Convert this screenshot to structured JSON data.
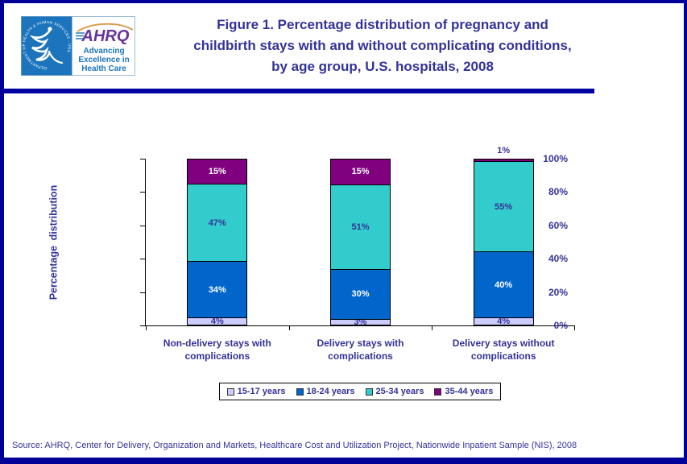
{
  "header": {
    "logo": {
      "seal_circle_text": "DEPARTMENT OF HEALTH & HUMAN SERVICES - USA",
      "brand": "AHRQ",
      "tagline_lines": [
        "Advancing",
        "Excellence in",
        "Health Care"
      ],
      "colors": {
        "hhs_blue": "#1C75BC",
        "brand_purple": "#663399",
        "arc_orange": "#D9A050",
        "tagline_blue": "#1B75BC"
      }
    },
    "title_lines": [
      "Figure 1. Percentage distribution of pregnancy and",
      "childbirth stays with and without complicating conditions,",
      "by age group, U.S. hospitals, 2008"
    ],
    "title_color": "#333399"
  },
  "chart_data": {
    "type": "bar",
    "stacked": true,
    "title": "Figure 1. Percentage distribution of pregnancy and childbirth stays with and without complicating conditions, by age group, U.S. hospitals, 2008",
    "xlabel": "",
    "ylabel": "Percentage distribution",
    "ylim": [
      0,
      100
    ],
    "grid": false,
    "legend_position": "bottom",
    "y_ticks": [
      "0%",
      "20%",
      "40%",
      "60%",
      "80%",
      "100%"
    ],
    "y_tick_values": [
      0,
      20,
      40,
      60,
      80,
      100
    ],
    "categories": [
      "Non-delivery stays with complications",
      "Delivery stays with complications",
      "Delivery stays without complications"
    ],
    "series": [
      {
        "name": "15-17 years",
        "color": "#CCCCFF",
        "label_color": "#333399",
        "values": [
          4,
          3,
          4
        ],
        "labels": [
          "4%",
          "3%",
          "4%"
        ],
        "label_outside": [
          false,
          false,
          false
        ]
      },
      {
        "name": "18-24 years",
        "color": "#0066CC",
        "label_color": "#FFFFFF",
        "values": [
          34,
          30,
          40
        ],
        "labels": [
          "34%",
          "30%",
          "40%"
        ],
        "label_outside": [
          false,
          false,
          false
        ]
      },
      {
        "name": "25-34 years",
        "color": "#33CCCC",
        "label_color": "#333399",
        "values": [
          47,
          51,
          55
        ],
        "labels": [
          "47%",
          "51%",
          "55%"
        ],
        "label_outside": [
          false,
          false,
          false
        ]
      },
      {
        "name": "35-44 years",
        "color": "#800080",
        "label_color": "#FFFFFF",
        "values": [
          15,
          15,
          1
        ],
        "labels": [
          "15%",
          "15%",
          "1%"
        ],
        "label_outside": [
          false,
          false,
          true
        ]
      }
    ],
    "axis_text_color": "#333399",
    "segment_border_color": "#000000"
  },
  "source": "Source: AHRQ, Center for Delivery, Organization and Markets, Healthcare Cost and Utilization Project, Nationwide Inpatient Sample (NIS), 2008"
}
